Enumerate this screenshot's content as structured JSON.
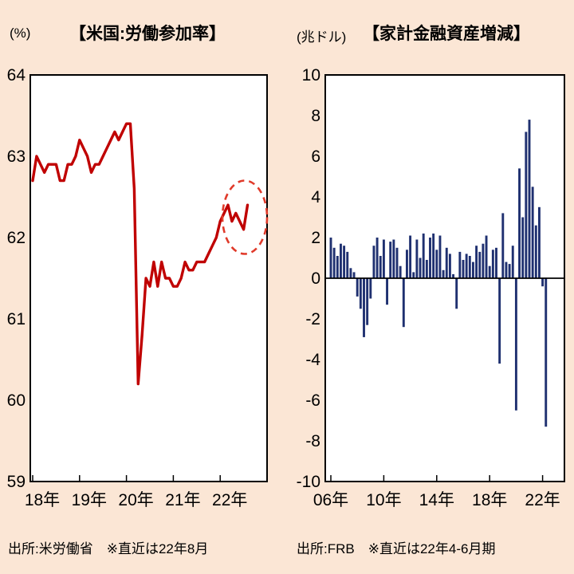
{
  "colors": {
    "background": "#fbe6d5",
    "plot_bg": "#ffffff",
    "axis": "#000000",
    "line_red": "#c00000",
    "highlight_red": "#e03a2a",
    "bar_navy": "#1f3070"
  },
  "charts": {
    "left": {
      "unit": "(%)",
      "title": "【米国:労働参加率】",
      "source": "出所:米労働省　※直近は22年8月"
    },
    "right": {
      "unit": "(兆ドル)",
      "title": "【家計金融資産増減】",
      "source": "出所:FRB　※直近は22年4-6月期"
    }
  },
  "chart_data": [
    {
      "type": "line",
      "title": "【米国:労働参加率】",
      "unit": "(%)",
      "ylabel": "%",
      "ylim": [
        59,
        64
      ],
      "yticks": [
        64,
        63,
        62,
        61,
        60,
        59
      ],
      "x_tick_labels": [
        "18年",
        "19年",
        "20年",
        "21年",
        "22年"
      ],
      "xtick_every_points": 12,
      "grid": false,
      "line_color": "#c00000",
      "values": [
        62.7,
        63.0,
        62.9,
        62.8,
        62.9,
        62.9,
        62.9,
        62.7,
        62.7,
        62.9,
        62.9,
        63.0,
        63.2,
        63.1,
        63.0,
        62.8,
        62.9,
        62.9,
        63.0,
        63.1,
        63.2,
        63.3,
        63.2,
        63.3,
        63.4,
        63.4,
        62.6,
        60.2,
        60.8,
        61.5,
        61.4,
        61.7,
        61.4,
        61.7,
        61.5,
        61.5,
        61.4,
        61.4,
        61.5,
        61.7,
        61.6,
        61.6,
        61.7,
        61.7,
        61.7,
        61.8,
        61.9,
        62.0,
        62.2,
        62.3,
        62.4,
        62.2,
        62.3,
        62.2,
        62.1,
        62.4
      ],
      "annotation": {
        "shape": "dashed-ellipse",
        "meaning": "recent months highlighted",
        "color": "#e03a2a"
      },
      "source": "出所:米労働省　※直近は22年8月"
    },
    {
      "type": "bar",
      "title": "【家計金融資産増減】",
      "unit": "(兆ドル)",
      "ylabel": "兆ドル",
      "ylim": [
        -10,
        10
      ],
      "yticks": [
        10,
        8,
        6,
        4,
        2,
        0,
        -2,
        -4,
        -6,
        -8,
        -10
      ],
      "x_tick_labels": [
        "06年",
        "10年",
        "14年",
        "18年",
        "22年"
      ],
      "xtick_every_points": 16,
      "grid": false,
      "bar_color": "#1f3070",
      "values": [
        2.0,
        1.5,
        1.1,
        1.7,
        1.6,
        1.3,
        0.5,
        0.3,
        -0.9,
        -1.5,
        -2.9,
        -2.3,
        -1.0,
        1.6,
        2.0,
        1.1,
        1.9,
        -1.3,
        1.8,
        1.9,
        1.5,
        0.6,
        -2.4,
        1.4,
        2.1,
        0.3,
        1.9,
        1.0,
        2.2,
        0.9,
        2.0,
        2.2,
        1.4,
        2.1,
        0.4,
        1.5,
        1.2,
        0.2,
        -1.5,
        1.3,
        0.9,
        1.2,
        1.1,
        0.8,
        1.6,
        1.3,
        1.7,
        2.1,
        0.6,
        1.4,
        1.5,
        -4.2,
        3.2,
        0.8,
        0.7,
        1.6,
        -6.5,
        5.4,
        3.0,
        7.2,
        7.8,
        4.5,
        2.6,
        3.5,
        -0.4,
        -7.3
      ],
      "source": "出所:FRB　※直近は22年4-6月期"
    }
  ]
}
